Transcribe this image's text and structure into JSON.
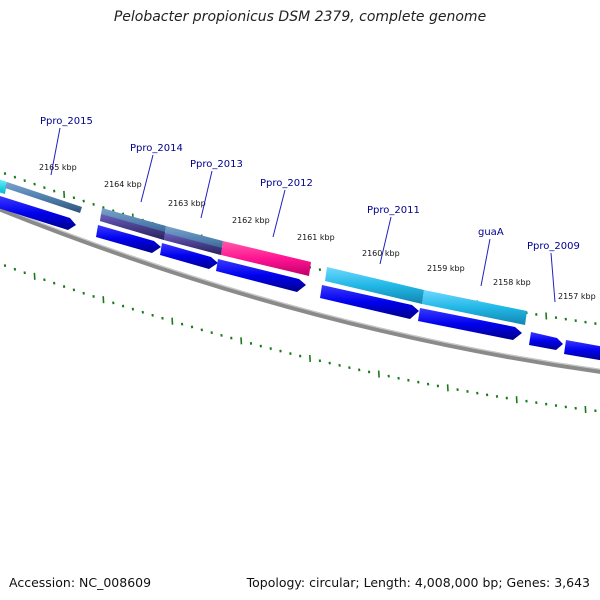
{
  "title": "Pelobacter propionicus DSM 2379, complete genome",
  "accession": "Accession: NC_008609",
  "summary": "Topology: circular; Length: 4,008,000 bp; Genes: 3,643",
  "colors": {
    "backbone": "#8a8a8a",
    "tick": "#1a7a1a",
    "gene_label": "#00008b",
    "cds": "#0000ee",
    "steelblue_feature": "#4f7fae",
    "slateblue_feature": "#483d8b",
    "magenta_feature": "#ff1493",
    "skyblue_feature": "#22b8e6"
  },
  "kbp_ticks": [
    "2165 kbp",
    "2164 kbp",
    "2163 kbp",
    "2162 kbp",
    "2161 kbp",
    "2160 kbp",
    "2159 kbp",
    "2158 kbp",
    "2157 kbp"
  ],
  "gene_labels": [
    "Ppro_2015",
    "Ppro_2014",
    "Ppro_2013",
    "Ppro_2012",
    "Ppro_2011",
    "guaA",
    "Ppro_2009"
  ]
}
